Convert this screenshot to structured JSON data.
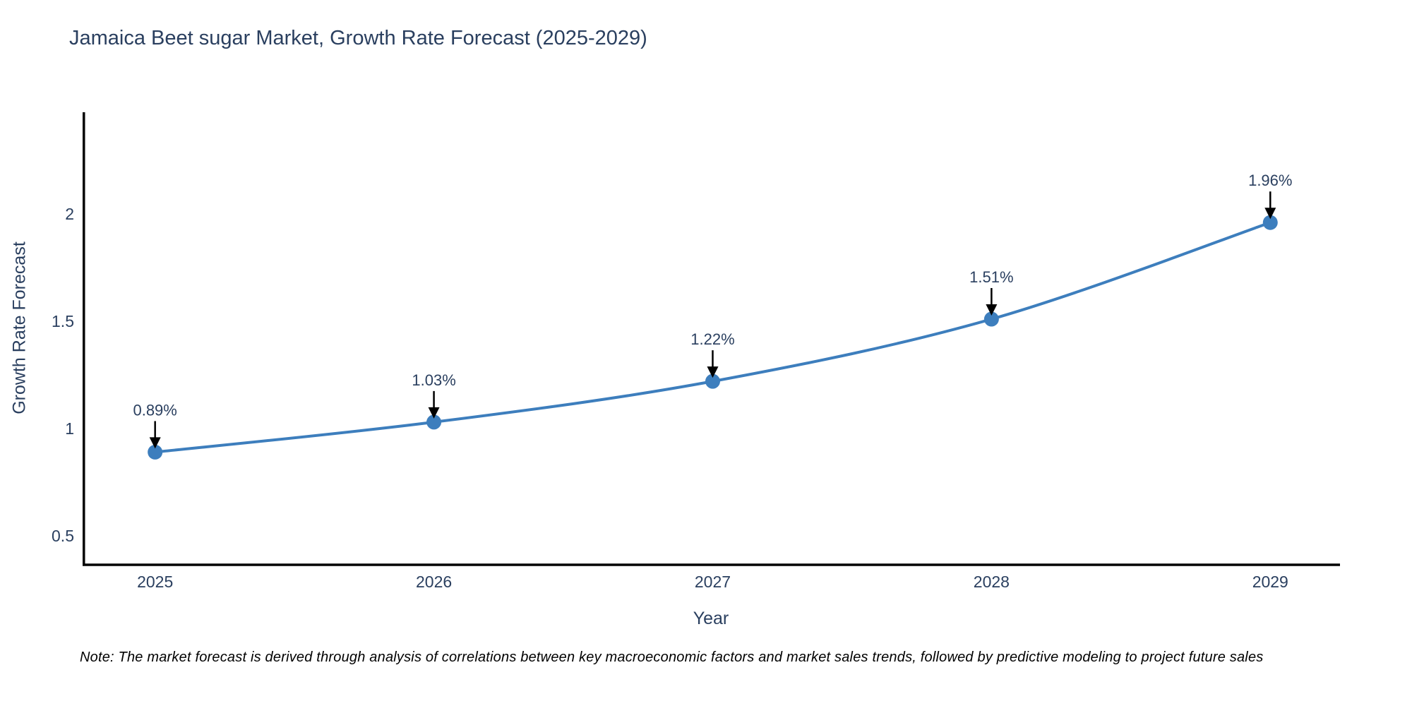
{
  "header": {
    "title": "Jamaica Beet sugar Market, Growth Rate Forecast (2025-2029)"
  },
  "chart_data": {
    "type": "line",
    "title": "Jamaica Beet sugar Market, Growth Rate Forecast (2025-2029)",
    "xlabel": "Year",
    "ylabel": "Growth Rate Forecast",
    "x": [
      2025,
      2026,
      2027,
      2028,
      2029
    ],
    "values": [
      0.89,
      1.03,
      1.22,
      1.51,
      1.96
    ],
    "point_labels": [
      "0.89%",
      "1.03%",
      "1.22%",
      "1.51%",
      "1.96%"
    ],
    "x_tick_labels": [
      "2025",
      "2026",
      "2027",
      "2028",
      "2029"
    ],
    "y_ticks": [
      0.5,
      1,
      1.5,
      2
    ],
    "y_tick_labels": [
      "0.5",
      "1",
      "1.5",
      "2"
    ],
    "xlim": [
      2024.74,
      2029.25
    ],
    "ylim": [
      0.365,
      2.474
    ],
    "grid": false,
    "legend_position": "none",
    "line_color": "#3d7ebd",
    "marker_color": "#3d7ebd",
    "annotation_arrow_color": "#000000",
    "axis_color": "#000000",
    "text_color": "#2a3f5f"
  },
  "note": {
    "text": "Note: The market forecast is derived through analysis of correlations between key macroeconomic factors and market sales trends, followed by predictive modeling to project future sales"
  }
}
